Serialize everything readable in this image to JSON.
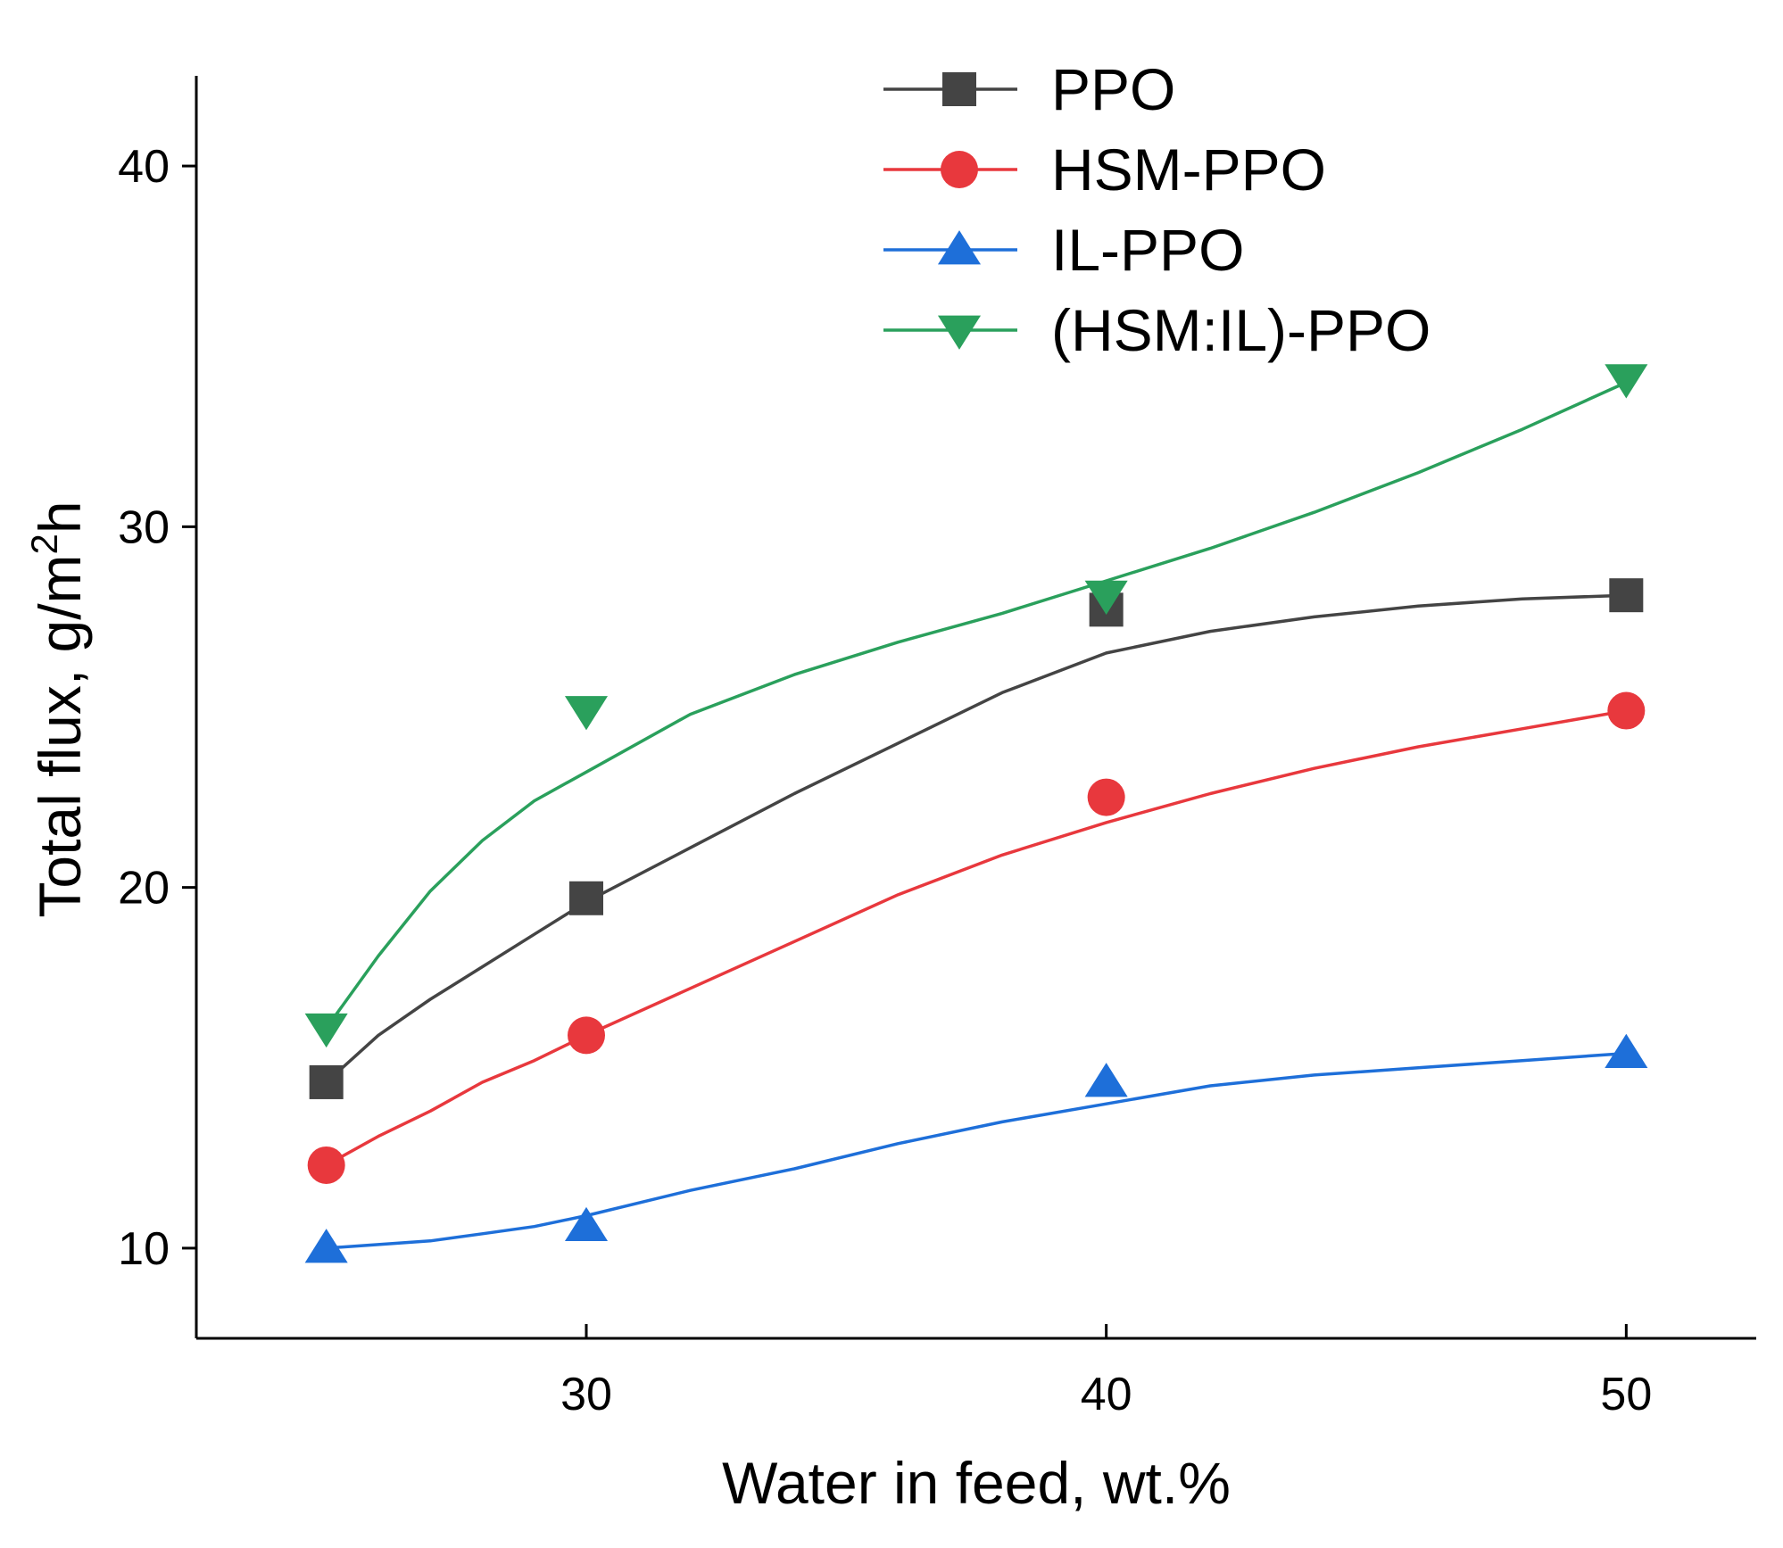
{
  "chart_data": {
    "type": "line",
    "title": "",
    "xlabel": "Water in feed, wt.%",
    "ylabel_prefix": "Total flux, g/m",
    "ylabel_sup": "2",
    "ylabel_suffix": "h",
    "xlim": [
      22.5,
      52.5
    ],
    "ylim": [
      7.5,
      42.5
    ],
    "xticks": [
      30,
      40,
      50
    ],
    "yticks": [
      10,
      20,
      30,
      40
    ],
    "legend_position": "top-center",
    "series": [
      {
        "name": "PPO",
        "color": "#444444",
        "marker": "square",
        "points": [
          [
            25,
            14.6
          ],
          [
            30,
            19.7
          ],
          [
            40,
            27.7
          ],
          [
            50,
            28.1
          ]
        ],
        "curve": [
          [
            25,
            14.6
          ],
          [
            26,
            15.9
          ],
          [
            27,
            16.9
          ],
          [
            28,
            17.8
          ],
          [
            29,
            18.7
          ],
          [
            30,
            19.6
          ],
          [
            32,
            21.1
          ],
          [
            34,
            22.6
          ],
          [
            36,
            24.0
          ],
          [
            38,
            25.4
          ],
          [
            40,
            26.5
          ],
          [
            42,
            27.1
          ],
          [
            44,
            27.5
          ],
          [
            46,
            27.8
          ],
          [
            48,
            28.0
          ],
          [
            50,
            28.1
          ]
        ]
      },
      {
        "name": "HSM-PPO",
        "color": "#e8383d",
        "marker": "circle",
        "points": [
          [
            25,
            12.3
          ],
          [
            30,
            15.9
          ],
          [
            40,
            22.5
          ],
          [
            50,
            24.9
          ]
        ],
        "curve": [
          [
            25,
            12.3
          ],
          [
            26,
            13.1
          ],
          [
            27,
            13.8
          ],
          [
            28,
            14.6
          ],
          [
            29,
            15.2
          ],
          [
            30,
            15.9
          ],
          [
            32,
            17.2
          ],
          [
            34,
            18.5
          ],
          [
            36,
            19.8
          ],
          [
            38,
            20.9
          ],
          [
            40,
            21.8
          ],
          [
            42,
            22.6
          ],
          [
            44,
            23.3
          ],
          [
            46,
            23.9
          ],
          [
            48,
            24.4
          ],
          [
            50,
            24.9
          ]
        ]
      },
      {
        "name": "IL-PPO",
        "color": "#1e6fd9",
        "marker": "triangle-up",
        "points": [
          [
            25,
            10.0
          ],
          [
            30,
            10.6
          ],
          [
            40,
            14.6
          ],
          [
            50,
            15.4
          ]
        ],
        "curve": [
          [
            25,
            10.0
          ],
          [
            26,
            10.1
          ],
          [
            27,
            10.2
          ],
          [
            28,
            10.4
          ],
          [
            29,
            10.6
          ],
          [
            30,
            10.9
          ],
          [
            32,
            11.6
          ],
          [
            34,
            12.2
          ],
          [
            36,
            12.9
          ],
          [
            38,
            13.5
          ],
          [
            40,
            14.0
          ],
          [
            42,
            14.5
          ],
          [
            44,
            14.8
          ],
          [
            46,
            15.0
          ],
          [
            48,
            15.2
          ],
          [
            50,
            15.4
          ]
        ]
      },
      {
        "name": "(HSM:IL)-PPO",
        "color": "#2aa05c",
        "marker": "triangle-down",
        "points": [
          [
            25,
            16.1
          ],
          [
            30,
            24.9
          ],
          [
            40,
            28.1
          ],
          [
            50,
            34.1
          ]
        ],
        "curve": [
          [
            25,
            16.1
          ],
          [
            26,
            18.1
          ],
          [
            27,
            19.9
          ],
          [
            28,
            21.3
          ],
          [
            29,
            22.4
          ],
          [
            30,
            23.2
          ],
          [
            32,
            24.8
          ],
          [
            34,
            25.9
          ],
          [
            36,
            26.8
          ],
          [
            38,
            27.6
          ],
          [
            40,
            28.5
          ],
          [
            42,
            29.4
          ],
          [
            44,
            30.4
          ],
          [
            46,
            31.5
          ],
          [
            48,
            32.7
          ],
          [
            50,
            34.0
          ]
        ]
      }
    ]
  }
}
